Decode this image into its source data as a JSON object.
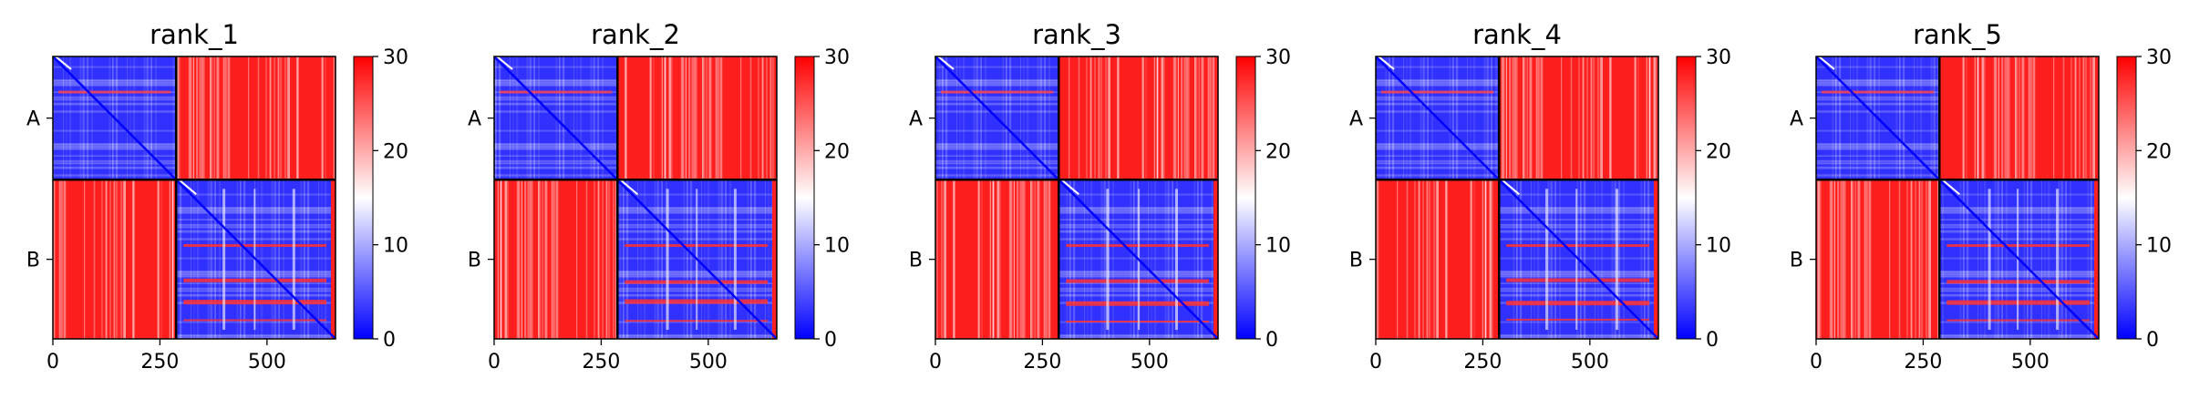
{
  "chart_data": {
    "type": "heatmap",
    "colormap": {
      "name": "bwr",
      "colors": [
        "#0000ff",
        "#ffffff",
        "#ff0000"
      ],
      "range": [
        0,
        30
      ],
      "ticks": [
        "0",
        "10",
        "20",
        "30"
      ]
    },
    "x_ticks": [
      "0",
      "250",
      "500"
    ],
    "x_tick_values": [
      0,
      250,
      500
    ],
    "x_range": [
      0,
      660
    ],
    "chain_boundary": 288,
    "chains": [
      "A",
      "B"
    ],
    "divider_color": "#000000",
    "panels": [
      {
        "title": "rank_1"
      },
      {
        "title": "rank_2"
      },
      {
        "title": "rank_3"
      },
      {
        "title": "rank_4"
      },
      {
        "title": "rank_5"
      }
    ]
  }
}
